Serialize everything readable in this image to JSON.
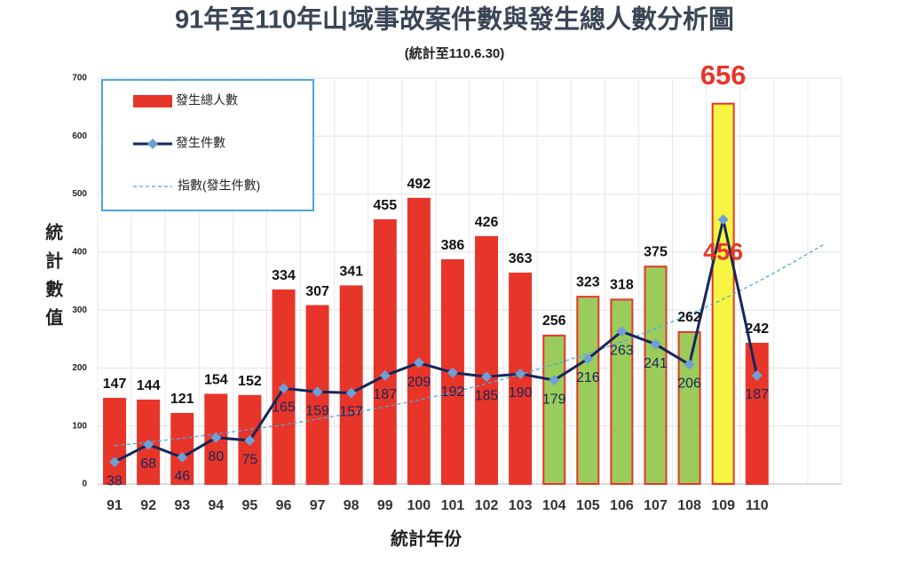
{
  "chart_data": {
    "type": "bar",
    "title": "91年至110年山域事故案件數與發生總人數分析圖",
    "subtitle": "(統計至110.6.30)",
    "x_label": "統計年份",
    "y_label": "統計數值",
    "categories": [
      "91",
      "92",
      "93",
      "94",
      "95",
      "96",
      "97",
      "98",
      "99",
      "100",
      "101",
      "102",
      "103",
      "104",
      "105",
      "106",
      "107",
      "108",
      "109",
      "110",
      null,
      null
    ],
    "series": [
      {
        "name": "發生總人數",
        "type": "bar",
        "color": "#e8352a",
        "colors": [
          "#e8352a",
          "#e8352a",
          "#e8352a",
          "#e8352a",
          "#e8352a",
          "#e8352a",
          "#e8352a",
          "#e8352a",
          "#e8352a",
          "#e8352a",
          "#e8352a",
          "#e8352a",
          "#e8352a",
          "#9bcb5a",
          "#9bcb5a",
          "#9bcb5a",
          "#9bcb5a",
          "#9bcb5a",
          "#f7f541",
          "#e8352a",
          null,
          null
        ],
        "values": [
          147,
          144,
          121,
          154,
          152,
          334,
          307,
          341,
          455,
          492,
          386,
          426,
          363,
          256,
          323,
          318,
          375,
          262,
          656,
          242,
          null,
          null
        ]
      },
      {
        "name": "發生件數",
        "type": "line",
        "color": "#15275a",
        "marker_color": "#6f9fd8",
        "values": [
          38,
          68,
          46,
          80,
          75,
          165,
          159,
          157,
          187,
          209,
          192,
          185,
          190,
          179,
          216,
          263,
          241,
          206,
          456,
          187,
          null,
          null
        ]
      },
      {
        "name": "指數(發生件數)",
        "type": "trend",
        "color": "#4aa8e0",
        "values": [
          66,
          72,
          79,
          86,
          94,
          102,
          112,
          122,
          133,
          145,
          158,
          173,
          189,
          206,
          225,
          245,
          268,
          292,
          319,
          348,
          380,
          414
        ]
      }
    ],
    "ylim": [
      0,
      700
    ],
    "yticks": [
      0,
      100,
      200,
      300,
      400,
      500,
      600,
      700
    ],
    "grid": true,
    "highlight_index": 18,
    "highlight_color": "#e8352a"
  }
}
